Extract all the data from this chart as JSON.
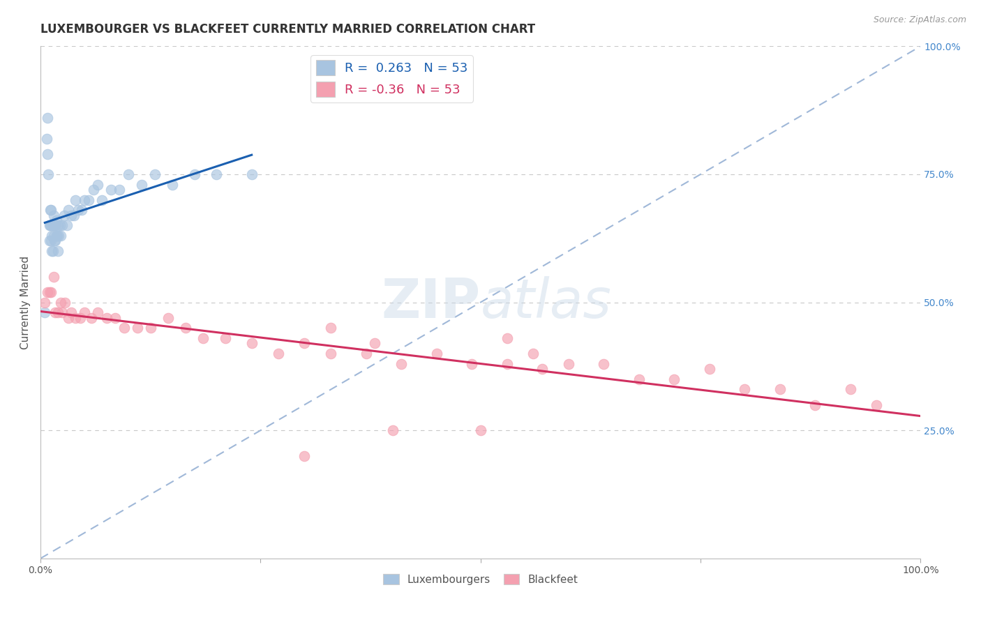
{
  "title": "LUXEMBOURGER VS BLACKFEET CURRENTLY MARRIED CORRELATION CHART",
  "source": "Source: ZipAtlas.com",
  "ylabel": "Currently Married",
  "xlim": [
    0.0,
    1.0
  ],
  "ylim": [
    0.0,
    1.0
  ],
  "blue_R": 0.263,
  "blue_N": 53,
  "pink_R": -0.36,
  "pink_N": 53,
  "blue_color": "#a8c4e0",
  "pink_color": "#f4a0b0",
  "blue_line_color": "#1a5fb0",
  "pink_line_color": "#d03060",
  "diag_line_color": "#a0b8d8",
  "grid_color": "#c8c8c8",
  "background_color": "#ffffff",
  "watermark_zip": "ZIP",
  "watermark_atlas": "atlas",
  "blue_x": [
    0.005,
    0.007,
    0.008,
    0.008,
    0.009,
    0.01,
    0.01,
    0.011,
    0.011,
    0.012,
    0.012,
    0.012,
    0.013,
    0.013,
    0.014,
    0.014,
    0.015,
    0.015,
    0.016,
    0.016,
    0.017,
    0.017,
    0.018,
    0.018,
    0.019,
    0.02,
    0.02,
    0.021,
    0.022,
    0.023,
    0.025,
    0.027,
    0.03,
    0.032,
    0.035,
    0.038,
    0.04,
    0.043,
    0.047,
    0.05,
    0.055,
    0.06,
    0.065,
    0.07,
    0.08,
    0.09,
    0.1,
    0.115,
    0.13,
    0.15,
    0.175,
    0.2,
    0.24
  ],
  "blue_y": [
    0.48,
    0.82,
    0.86,
    0.79,
    0.75,
    0.62,
    0.65,
    0.65,
    0.68,
    0.62,
    0.65,
    0.68,
    0.6,
    0.63,
    0.6,
    0.65,
    0.63,
    0.67,
    0.62,
    0.65,
    0.62,
    0.65,
    0.63,
    0.66,
    0.63,
    0.6,
    0.65,
    0.63,
    0.65,
    0.63,
    0.65,
    0.67,
    0.65,
    0.68,
    0.67,
    0.67,
    0.7,
    0.68,
    0.68,
    0.7,
    0.7,
    0.72,
    0.73,
    0.7,
    0.72,
    0.72,
    0.75,
    0.73,
    0.75,
    0.73,
    0.75,
    0.75,
    0.75
  ],
  "pink_x": [
    0.005,
    0.008,
    0.01,
    0.012,
    0.015,
    0.017,
    0.02,
    0.023,
    0.025,
    0.028,
    0.032,
    0.035,
    0.04,
    0.045,
    0.05,
    0.058,
    0.065,
    0.075,
    0.085,
    0.095,
    0.11,
    0.125,
    0.145,
    0.165,
    0.185,
    0.21,
    0.24,
    0.27,
    0.3,
    0.33,
    0.37,
    0.41,
    0.45,
    0.49,
    0.53,
    0.57,
    0.6,
    0.64,
    0.68,
    0.72,
    0.76,
    0.8,
    0.84,
    0.88,
    0.92,
    0.95,
    0.33,
    0.53,
    0.38,
    0.56,
    0.3,
    0.4,
    0.5
  ],
  "pink_y": [
    0.5,
    0.52,
    0.52,
    0.52,
    0.55,
    0.48,
    0.48,
    0.5,
    0.48,
    0.5,
    0.47,
    0.48,
    0.47,
    0.47,
    0.48,
    0.47,
    0.48,
    0.47,
    0.47,
    0.45,
    0.45,
    0.45,
    0.47,
    0.45,
    0.43,
    0.43,
    0.42,
    0.4,
    0.42,
    0.4,
    0.4,
    0.38,
    0.4,
    0.38,
    0.38,
    0.37,
    0.38,
    0.38,
    0.35,
    0.35,
    0.37,
    0.33,
    0.33,
    0.3,
    0.33,
    0.3,
    0.45,
    0.43,
    0.42,
    0.4,
    0.2,
    0.25,
    0.25
  ],
  "title_fontsize": 12,
  "label_fontsize": 11,
  "tick_fontsize": 10,
  "legend_fontsize": 13
}
